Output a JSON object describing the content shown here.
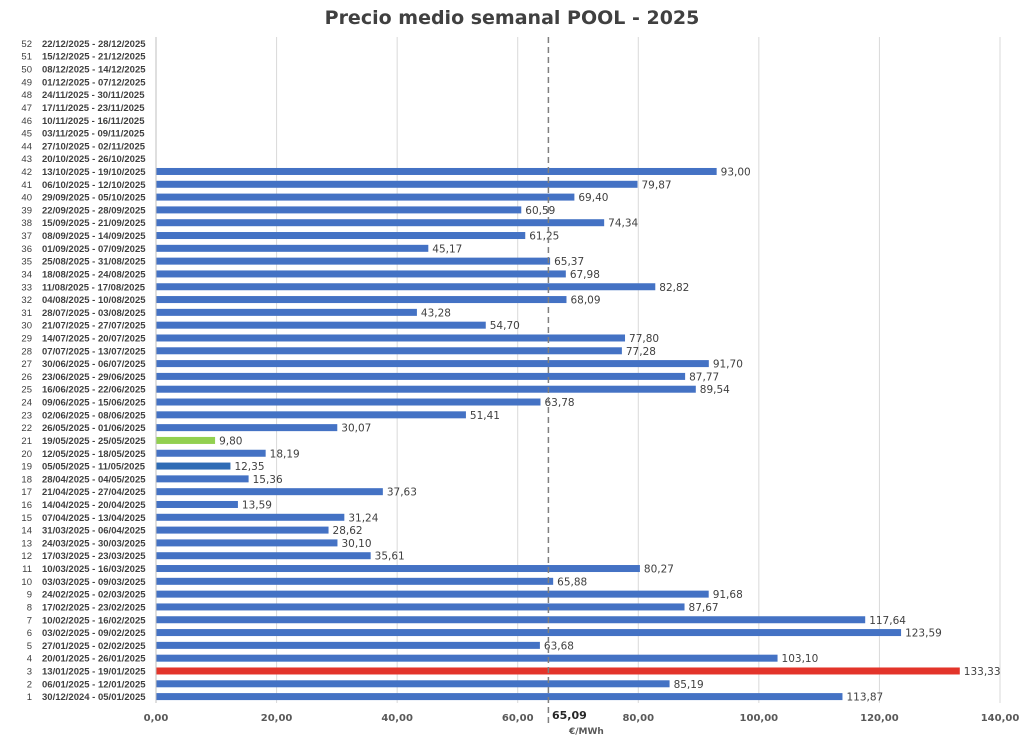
{
  "chart_data": {
    "type": "bar",
    "orientation": "horizontal",
    "title": "Precio medio semanal POOL - 2025",
    "xlabel": "€/MWh",
    "xlim": [
      0,
      140
    ],
    "x_ticks": [
      "0,00",
      "20,00",
      "40,00",
      "60,00",
      "80,00",
      "100,00",
      "120,00",
      "140,00"
    ],
    "average_line": {
      "value": 65.09,
      "label": "65,09",
      "style": "dashed"
    },
    "default_color": "#4472C4",
    "weeks": [
      1,
      2,
      3,
      4,
      5,
      6,
      7,
      8,
      9,
      10,
      11,
      12,
      13,
      14,
      15,
      16,
      17,
      18,
      19,
      20,
      21,
      22,
      23,
      24,
      25,
      26,
      27,
      28,
      29,
      30,
      31,
      32,
      33,
      34,
      35,
      36,
      37,
      38,
      39,
      40,
      41,
      42,
      43,
      44,
      45,
      46,
      47,
      48,
      49,
      50,
      51,
      52
    ],
    "categories": [
      "30/12/2024 - 05/01/2025",
      "06/01/2025 - 12/01/2025",
      "13/01/2025 - 19/01/2025",
      "20/01/2025 - 26/01/2025",
      "27/01/2025 - 02/02/2025",
      "03/02/2025 - 09/02/2025",
      "10/02/2025 - 16/02/2025",
      "17/02/2025 - 23/02/2025",
      "24/02/2025 - 02/03/2025",
      "03/03/2025 - 09/03/2025",
      "10/03/2025 - 16/03/2025",
      "17/03/2025 - 23/03/2025",
      "24/03/2025 - 30/03/2025",
      "31/03/2025 - 06/04/2025",
      "07/04/2025 - 13/04/2025",
      "14/04/2025 - 20/04/2025",
      "21/04/2025 - 27/04/2025",
      "28/04/2025 - 04/05/2025",
      "05/05/2025 - 11/05/2025",
      "12/05/2025 - 18/05/2025",
      "19/05/2025 - 25/05/2025",
      "26/05/2025 - 01/06/2025",
      "02/06/2025 - 08/06/2025",
      "09/06/2025 - 15/06/2025",
      "16/06/2025 - 22/06/2025",
      "23/06/2025 - 29/06/2025",
      "30/06/2025 - 06/07/2025",
      "07/07/2025 - 13/07/2025",
      "14/07/2025 - 20/07/2025",
      "21/07/2025 - 27/07/2025",
      "28/07/2025 - 03/08/2025",
      "04/08/2025 - 10/08/2025",
      "11/08/2025 - 17/08/2025",
      "18/08/2025 - 24/08/2025",
      "25/08/2025 - 31/08/2025",
      "01/09/2025 - 07/09/2025",
      "08/09/2025 - 14/09/2025",
      "15/09/2025 - 21/09/2025",
      "22/09/2025 - 28/09/2025",
      "29/09/2025 - 05/10/2025",
      "06/10/2025 - 12/10/2025",
      "13/10/2025 - 19/10/2025",
      "20/10/2025 - 26/10/2025",
      "27/10/2025 - 02/11/2025",
      "03/11/2025 - 09/11/2025",
      "10/11/2025 - 16/11/2025",
      "17/11/2025 - 23/11/2025",
      "24/11/2025 - 30/11/2025",
      "01/12/2025 - 07/12/2025",
      "08/12/2025 - 14/12/2025",
      "15/12/2025 - 21/12/2025",
      "22/12/2025 - 28/12/2025"
    ],
    "values": [
      113.87,
      85.19,
      133.33,
      103.1,
      63.68,
      123.59,
      117.64,
      87.67,
      91.68,
      65.88,
      80.27,
      35.61,
      30.1,
      28.62,
      31.24,
      13.59,
      37.63,
      15.36,
      12.35,
      18.19,
      9.8,
      30.07,
      51.41,
      63.78,
      89.54,
      87.77,
      91.7,
      77.28,
      77.8,
      54.7,
      43.28,
      68.09,
      82.82,
      67.98,
      65.37,
      45.17,
      61.25,
      74.34,
      60.59,
      69.4,
      79.87,
      93.0,
      null,
      null,
      null,
      null,
      null,
      null,
      null,
      null,
      null,
      null
    ],
    "value_labels": [
      "113,87",
      "85,19",
      "133,33",
      "103,10",
      "63,68",
      "123,59",
      "117,64",
      "87,67",
      "91,68",
      "65,88",
      "80,27",
      "35,61",
      "30,10",
      "28,62",
      "31,24",
      "13,59",
      "37,63",
      "15,36",
      "12,35",
      "18,19",
      "9,80",
      "30,07",
      "51,41",
      "63,78",
      "89,54",
      "87,77",
      "91,70",
      "77,28",
      "77,80",
      "54,70",
      "43,28",
      "68,09",
      "82,82",
      "67,98",
      "65,37",
      "45,17",
      "61,25",
      "74,34",
      "60,59",
      "69,40",
      "79,87",
      "93,00",
      "",
      "",
      "",
      "",
      "",
      "",
      "",
      "",
      "",
      ""
    ],
    "highlight_colors": {
      "3": "#E3342A",
      "19": "#2E6BB5",
      "21": "#92D050"
    }
  }
}
